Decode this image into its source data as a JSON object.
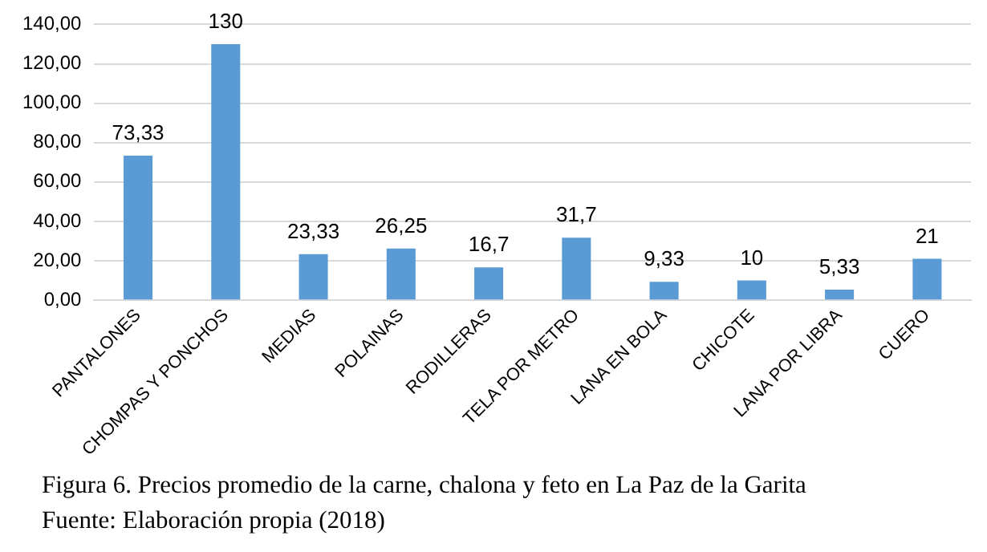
{
  "chart_data": {
    "type": "bar",
    "categories": [
      "PANTALONES",
      "CHOMPAS Y PONCHOS",
      "MEDIAS",
      "POLAINAS",
      "RODILLERAS",
      "TELA POR METRO",
      "LANA EN BOLA",
      "CHICOTE",
      "LANA POR LIBRA",
      "CUERO"
    ],
    "values": [
      73.33,
      130,
      23.33,
      26.25,
      16.7,
      31.7,
      9.33,
      10,
      5.33,
      21
    ],
    "value_labels": [
      "73,33",
      "130",
      "23,33",
      "26,25",
      "16,7",
      "31,7",
      "9,33",
      "10",
      "5,33",
      "21"
    ],
    "color": "#5b9bd5",
    "ylim": [
      0,
      140
    ],
    "yticks": [
      {
        "value": 0,
        "label": "0,00"
      },
      {
        "value": 20,
        "label": "20,00"
      },
      {
        "value": 40,
        "label": "40,00"
      },
      {
        "value": 60,
        "label": "60,00"
      },
      {
        "value": 80,
        "label": "80,00"
      },
      {
        "value": 100,
        "label": "100,00"
      },
      {
        "value": 120,
        "label": "120,00"
      },
      {
        "value": 140,
        "label": "140,00"
      }
    ],
    "grid": "y",
    "legend": false,
    "annotations": [
      "Figura 6. Precios promedio de la carne, chalona y feto en La Paz de la Garita",
      "Fuente:  Elaboración propia (2018)"
    ]
  }
}
